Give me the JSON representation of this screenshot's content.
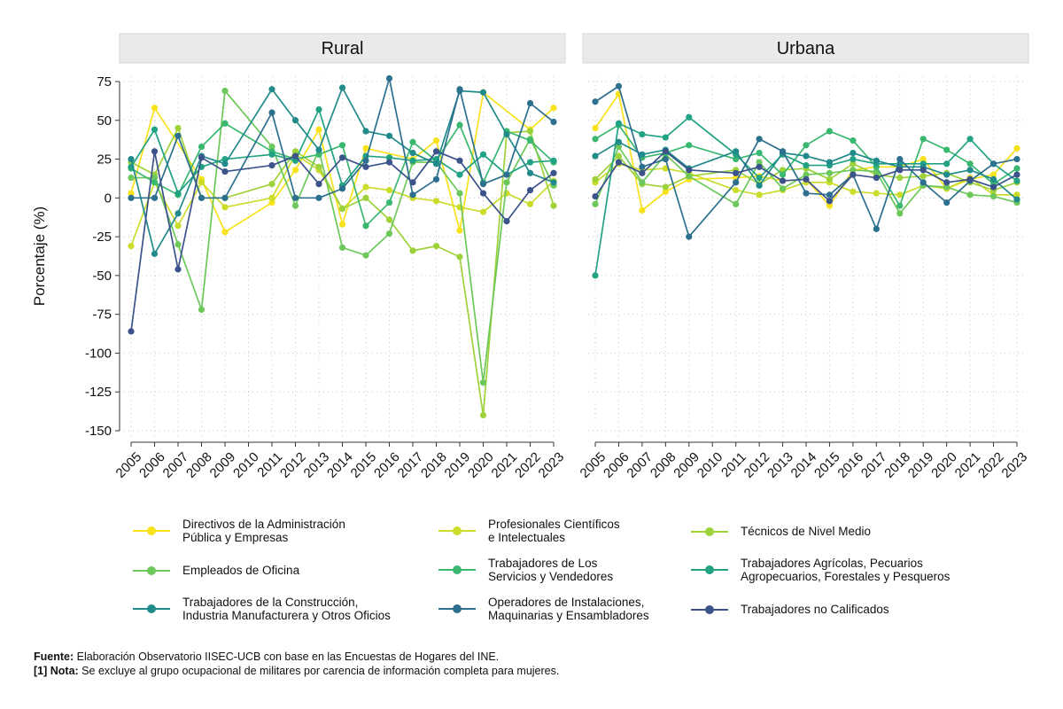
{
  "chart_data": {
    "type": "line",
    "ylabel": "Porcentaje (%)",
    "ylim": [
      -150,
      75
    ],
    "yticks": [
      75,
      50,
      25,
      0,
      -25,
      -50,
      -75,
      -100,
      -125,
      -150
    ],
    "categories": [
      "2005",
      "2006",
      "2007",
      "2008",
      "2009",
      "2010",
      "2011",
      "2012",
      "2013",
      "2014",
      "2015",
      "2016",
      "2017",
      "2018",
      "2019",
      "2020",
      "2021",
      "2022",
      "2023"
    ],
    "legend": "bottom",
    "panels": [
      {
        "title": "Rural",
        "series": [
          {
            "name": "Directivos de la Administración Pública y Empresas",
            "color": "#f8e21b",
            "values": [
              3,
              58,
              null,
              12,
              -22,
              null,
              -3,
              18,
              44,
              -17,
              32,
              null,
              25,
              37,
              -21,
              68,
              null,
              44,
              58
            ]
          },
          {
            "name": "Profesionales Científicos e Intelectuales",
            "color": "#cbdc2b",
            "values": [
              -31,
              10,
              -18,
              10,
              -6,
              null,
              0,
              28,
              18,
              -7,
              7,
              5,
              0,
              -2,
              -6,
              -9,
              3,
              -4,
              11
            ]
          },
          {
            "name": "Técnicos de Nivel Medio",
            "color": "#9ed23a",
            "values": [
              23,
              15,
              45,
              0,
              0,
              null,
              9,
              30,
              20,
              -7,
              0,
              -14,
              -34,
              -31,
              -38,
              -140,
              42,
              43,
              -5
            ]
          },
          {
            "name": "Empleados de Oficina",
            "color": "#6cc85a",
            "values": [
              13,
              13,
              -30,
              -72,
              69,
              null,
              33,
              -5,
              31,
              -32,
              -37,
              -23,
              23,
              23,
              3,
              -119,
              10,
              38,
              8
            ]
          },
          {
            "name": "Trabajadores de Los Servicios y Vendedores",
            "color": "#3ab870",
            "values": [
              19,
              10,
              2,
              33,
              48,
              null,
              30,
              25,
              28,
              34,
              -18,
              -3,
              36,
              24,
              47,
              10,
              43,
              37,
              23
            ]
          },
          {
            "name": "Trabajadores Agrícolas, Pecuarios Agropecuarios, Forestales y Pesqueros",
            "color": "#21a283",
            "values": [
              20,
              44,
              3,
              20,
              25,
              null,
              28,
              24,
              57,
              8,
              27,
              26,
              24,
              25,
              15,
              28,
              15,
              23,
              24
            ]
          },
          {
            "name": "Trabajadores de la Construcción, Industria Manufacturera y Otros Oficios",
            "color": "#218a8a",
            "values": [
              25,
              -36,
              -10,
              27,
              22,
              null,
              70,
              50,
              31,
              71,
              43,
              40,
              29,
              22,
              69,
              68,
              41,
              16,
              10
            ]
          },
          {
            "name": "Operadores de Instalaciones, Maquinarias y Ensambladores",
            "color": "#2c6f8e",
            "values": [
              0,
              0,
              40,
              0,
              0,
              null,
              55,
              0,
              0,
              6,
              24,
              77,
              2,
              12,
              70,
              9,
              15,
              61,
              49
            ]
          },
          {
            "name": "Trabajadores no Calificados",
            "color": "#3b528b",
            "values": [
              -86,
              30,
              -46,
              26,
              17,
              null,
              21,
              27,
              9,
              26,
              20,
              23,
              10,
              30,
              24,
              3,
              -15,
              5,
              16
            ]
          }
        ]
      },
      {
        "title": "Urbana",
        "series": [
          {
            "name": "Directivos de la Administración Pública y Empresas",
            "color": "#f8e21b",
            "values": [
              45,
              67,
              -8,
              4,
              12,
              null,
              13,
              14,
              11,
              12,
              -5,
              18,
              20,
              20,
              25,
              6,
              12,
              15,
              32
            ]
          },
          {
            "name": "Profesionales Científicos e Intelectuales",
            "color": "#cbdc2b",
            "values": [
              10,
              22,
              18,
              19,
              16,
              null,
              5,
              2,
              5,
              10,
              10,
              4,
              3,
              2,
              8,
              6,
              13,
              2,
              2
            ]
          },
          {
            "name": "Técnicos de Nivel Medio",
            "color": "#9ed23a",
            "values": [
              12,
              27,
              9,
              7,
              14,
              null,
              18,
              9,
              18,
              19,
              12,
              22,
              15,
              13,
              14,
              16,
              10,
              5,
              10
            ]
          },
          {
            "name": "Empleados de Oficina",
            "color": "#6cc85a",
            "values": [
              -4,
              33,
              10,
              28,
              14,
              null,
              -4,
              23,
              6,
              15,
              16,
              18,
              17,
              -10,
              8,
              7,
              2,
              1,
              -3
            ]
          },
          {
            "name": "Trabajadores de Los Servicios y Vendedores",
            "color": "#3ab870",
            "values": [
              38,
              47,
              26,
              29,
              34,
              null,
              25,
              29,
              15,
              34,
              43,
              37,
              20,
              -5,
              38,
              31,
              22,
              9,
              19
            ]
          },
          {
            "name": "Trabajadores Agrícolas, Pecuarios Agropecuarios, Forestales y Pesqueros",
            "color": "#21a283",
            "values": [
              -50,
              48,
              41,
              39,
              52,
              null,
              28,
              13,
              28,
              21,
              21,
              25,
              22,
              22,
              22,
              22,
              38,
              22,
              11
            ]
          },
          {
            "name": "Trabajadores de la Construcción, Industria Manufacturera y Otros Oficios",
            "color": "#218a8a",
            "values": [
              27,
              36,
              28,
              31,
              19,
              null,
              30,
              8,
              29,
              27,
              23,
              29,
              24,
              20,
              20,
              15,
              18,
              12,
              -1
            ]
          },
          {
            "name": "Operadores de Instalaciones, Maquinarias y Ensambladores",
            "color": "#2c6f8e",
            "values": [
              62,
              72,
              20,
              25,
              -25,
              null,
              10,
              38,
              30,
              3,
              2,
              15,
              -20,
              25,
              10,
              -3,
              11,
              22,
              25
            ]
          },
          {
            "name": "Trabajadores no Calificados",
            "color": "#3b528b",
            "values": [
              1,
              23,
              16,
              30,
              18,
              null,
              16,
              20,
              11,
              12,
              -2,
              15,
              13,
              18,
              18,
              10,
              12,
              7,
              15
            ]
          }
        ]
      }
    ]
  },
  "legend": {
    "items": [
      {
        "label": "Directivos de la Administración\nPública y Empresas",
        "color": "#f8e21b"
      },
      {
        "label": "Profesionales Científicos\ne Intelectuales",
        "color": "#cbdc2b"
      },
      {
        "label": "Técnicos de Nivel Medio",
        "color": "#9ed23a"
      },
      {
        "label": "Empleados de Oficina",
        "color": "#6cc85a"
      },
      {
        "label": "Trabajadores de Los\nServicios y Vendedores",
        "color": "#3ab870"
      },
      {
        "label": "Trabajadores Agrícolas, Pecuarios\nAgropecuarios, Forestales y Pesqueros",
        "color": "#21a283"
      },
      {
        "label": "Trabajadores de la Construcción,\nIndustria Manufacturera y Otros Oficios",
        "color": "#218a8a"
      },
      {
        "label": "Operadores de Instalaciones,\nMaquinarias y Ensambladores",
        "color": "#2c6f8e"
      },
      {
        "label": "Trabajadores no Calificados",
        "color": "#3b528b"
      }
    ]
  },
  "notes": {
    "source_label": "Fuente:",
    "source_text": " Elaboración Observatorio IISEC-UCB con base en las Encuestas de Hogares del INE.",
    "note_label": "[1] Nota:",
    "note_text": " Se excluye al grupo ocupacional de militares por carencia de información completa para mujeres."
  }
}
